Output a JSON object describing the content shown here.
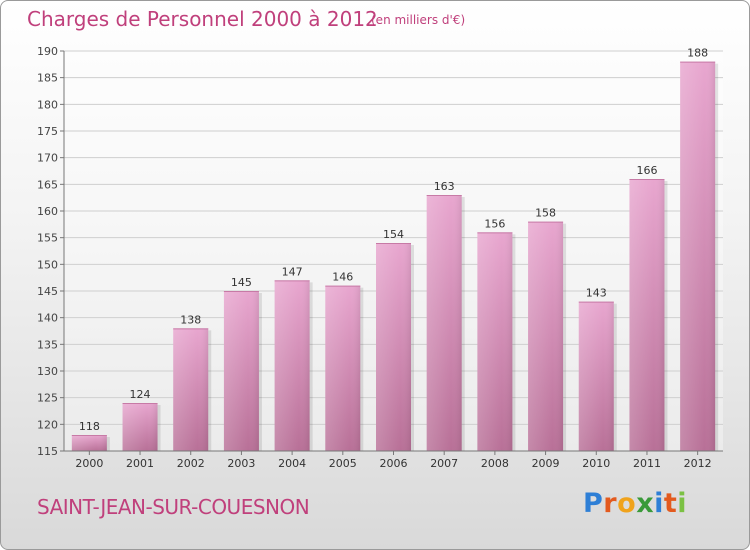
{
  "title": "Charges de Personnel 2000 à 2012",
  "subtitle": "(en milliers d'€)",
  "city": "SAINT-JEAN-SUR-COUESNON",
  "logo": {
    "letters": [
      "P",
      "r",
      "o",
      "x",
      "i",
      "t",
      "i"
    ],
    "colors": [
      "#2e7fd6",
      "#e35a1e",
      "#f0a31c",
      "#3a9a3a",
      "#2e7fd6",
      "#e35a1e",
      "#7bc143"
    ]
  },
  "colors": {
    "bar": "#d98fbb",
    "text": "#c0407c"
  },
  "chart_data": {
    "type": "bar",
    "title": "Charges de Personnel 2000 à 2012",
    "subtitle": "(en milliers d'€)",
    "categories": [
      "2000",
      "2001",
      "2002",
      "2003",
      "2004",
      "2005",
      "2006",
      "2007",
      "2008",
      "2009",
      "2010",
      "2011",
      "2012"
    ],
    "values": [
      118,
      124,
      138,
      145,
      147,
      146,
      154,
      163,
      156,
      158,
      143,
      166,
      188
    ],
    "ylim": [
      115,
      190
    ],
    "yticks": [
      115,
      120,
      125,
      130,
      135,
      140,
      145,
      150,
      155,
      160,
      165,
      170,
      175,
      180,
      185,
      190
    ],
    "grid": true
  }
}
